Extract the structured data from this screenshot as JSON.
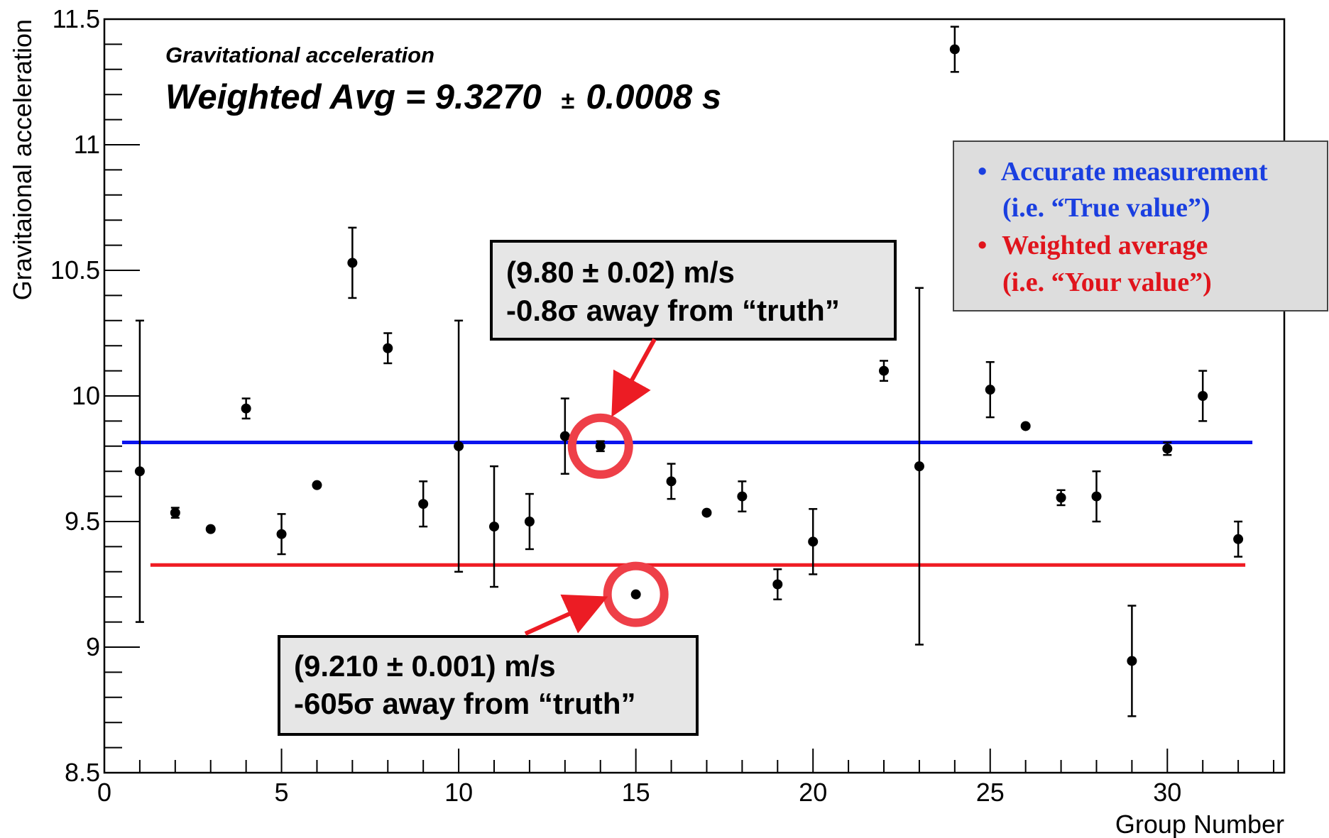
{
  "chart_data": {
    "type": "scatter",
    "xlabel": "Group Number",
    "ylabel": "Gravitaional acceleration",
    "xlim": [
      0,
      33.3
    ],
    "ylim": [
      8.5,
      11.5
    ],
    "x_ticks": [
      0,
      5,
      10,
      15,
      20,
      25,
      30
    ],
    "y_ticks": [
      8.5,
      9,
      9.5,
      10,
      10.5,
      11,
      11.5
    ],
    "x_tick_labels": [
      "0",
      "5",
      "10",
      "15",
      "20",
      "25",
      "30"
    ],
    "y_tick_labels": [
      "8.5",
      "9",
      "9.5",
      "10",
      "10.5",
      "11",
      "11.5"
    ],
    "grid": false,
    "points": [
      {
        "x": 1,
        "y": 9.7,
        "err": 0.6
      },
      {
        "x": 2,
        "y": 9.535,
        "err": 0.02
      },
      {
        "x": 3,
        "y": 9.47,
        "err": 0.0
      },
      {
        "x": 4,
        "y": 9.95,
        "err": 0.04
      },
      {
        "x": 5,
        "y": 9.45,
        "err": 0.08
      },
      {
        "x": 6,
        "y": 9.645,
        "err": 0.0
      },
      {
        "x": 7,
        "y": 10.53,
        "err": 0.14
      },
      {
        "x": 8,
        "y": 10.19,
        "err": 0.06
      },
      {
        "x": 9,
        "y": 9.57,
        "err": 0.09
      },
      {
        "x": 10,
        "y": 9.8,
        "err": 0.5
      },
      {
        "x": 11,
        "y": 9.48,
        "err": 0.24
      },
      {
        "x": 12,
        "y": 9.5,
        "err": 0.11
      },
      {
        "x": 13,
        "y": 9.84,
        "err": 0.15
      },
      {
        "x": 14,
        "y": 9.8,
        "err": 0.02
      },
      {
        "x": 15,
        "y": 9.21,
        "err": 0.001
      },
      {
        "x": 16,
        "y": 9.66,
        "err": 0.07
      },
      {
        "x": 17,
        "y": 9.535,
        "err": 0.0
      },
      {
        "x": 18,
        "y": 9.6,
        "err": 0.06
      },
      {
        "x": 19,
        "y": 9.25,
        "err": 0.06
      },
      {
        "x": 20,
        "y": 9.42,
        "err": 0.13
      },
      {
        "x": 22,
        "y": 10.1,
        "err": 0.04
      },
      {
        "x": 23,
        "y": 9.72,
        "err": 0.71
      },
      {
        "x": 24,
        "y": 11.38,
        "err": 0.09
      },
      {
        "x": 25,
        "y": 10.025,
        "err": 0.11
      },
      {
        "x": 26,
        "y": 9.88,
        "err": 0.0
      },
      {
        "x": 27,
        "y": 9.595,
        "err": 0.03
      },
      {
        "x": 28,
        "y": 9.6,
        "err": 0.1
      },
      {
        "x": 29,
        "y": 8.945,
        "err": 0.22
      },
      {
        "x": 30,
        "y": 9.79,
        "err": 0.025
      },
      {
        "x": 31,
        "y": 10.0,
        "err": 0.1
      },
      {
        "x": 32,
        "y": 9.43,
        "err": 0.07
      }
    ],
    "reference_lines": [
      {
        "y": 9.815,
        "x_range": [
          0.5,
          32.4
        ],
        "color": "#0a14ee"
      },
      {
        "y": 9.327,
        "x_range": [
          1.3,
          32.2
        ],
        "color": "#ef1c24"
      }
    ],
    "highlighted_points": [
      {
        "x": 14,
        "y": 9.8
      },
      {
        "x": 15,
        "y": 9.21
      }
    ]
  },
  "annotation": {
    "subtitle": "Gravitational acceleration",
    "main_prefix": "Weighted Avg = 9.3270",
    "main_pm": "±",
    "main_suffix": "0.0008 s"
  },
  "callouts": [
    {
      "line1": "(9.80 ± 0.02) m/s",
      "line2": "-0.8σ away from “truth”"
    },
    {
      "line1": "(9.210 ± 0.001) m/s",
      "line2": "-605σ away from “truth”"
    }
  ],
  "legend": {
    "items": [
      {
        "line1": "Accurate measurement",
        "line2": "(i.e. “True value”)",
        "color": "#1a3fe0"
      },
      {
        "line1": "Weighted average",
        "line2": "(i.e. “Your value”)",
        "color": "#e0141c"
      }
    ]
  },
  "colors": {
    "highlight_circle": "#ee3f48",
    "arrow": "#ec1c24",
    "box_fill": "#e6e6e6",
    "legend_fill": "#dddddd"
  }
}
